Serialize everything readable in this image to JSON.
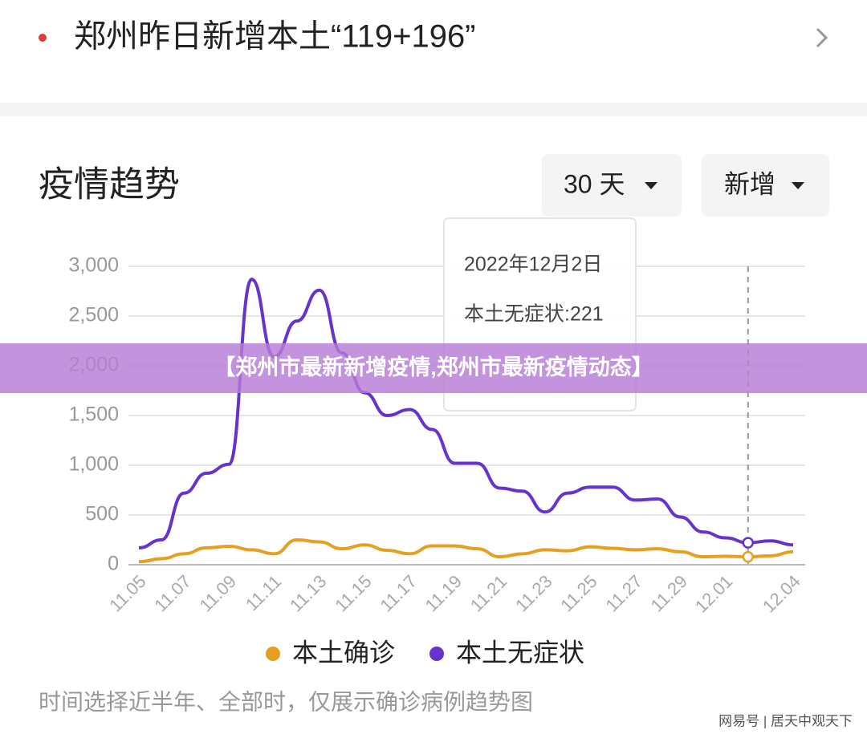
{
  "header": {
    "title": "郑州昨日新增本土“119+196”"
  },
  "section_title": "疫情趋势",
  "filters": [
    "30 天",
    "新增"
  ],
  "tooltip": {
    "date": "2022年12月2日",
    "line": "本土无症状:221"
  },
  "note": "时间选择近半年、全部时，仅展示确诊病例趋势图",
  "banner": "【郑州市最新新增疫情,郑州市最新疫情动态】",
  "watermark": "网易号 | 居天中观天下",
  "chart_data": {
    "type": "line",
    "categories": [
      "11.05",
      null,
      "11.07",
      null,
      "11.09",
      null,
      "11.11",
      null,
      "11.13",
      null,
      "11.15",
      null,
      "11.17",
      null,
      "11.19",
      null,
      "11.21",
      null,
      "11.23",
      null,
      "11.25",
      null,
      "11.27",
      null,
      "11.29",
      null,
      "12.01",
      null,
      null,
      "12.04"
    ],
    "series": [
      {
        "name": "本土确诊",
        "color": "#e6a021",
        "values": [
          30,
          60,
          110,
          170,
          185,
          150,
          110,
          250,
          230,
          160,
          200,
          145,
          110,
          190,
          190,
          160,
          80,
          110,
          150,
          140,
          180,
          165,
          150,
          160,
          130,
          80,
          85,
          80,
          90,
          130
        ]
      },
      {
        "name": "本土无症状",
        "color": "#6633cc",
        "values": [
          170,
          250,
          720,
          920,
          1010,
          2870,
          2090,
          2450,
          2760,
          2130,
          1730,
          1500,
          1560,
          1360,
          1020,
          1020,
          770,
          740,
          530,
          720,
          780,
          780,
          650,
          660,
          480,
          330,
          270,
          221,
          240,
          200
        ]
      }
    ],
    "ylim": [
      0,
      3000
    ],
    "yticks": [
      0,
      500,
      {
        "value": 1000,
        "label": "1,000"
      },
      {
        "value": 1500,
        "label": "1,500"
      },
      {
        "value": 2000,
        "label": "2,000"
      },
      {
        "value": 2500,
        "label": "2,500"
      },
      {
        "value": 3000,
        "label": "3,000"
      }
    ],
    "grid": true,
    "highlight_index": 27
  }
}
